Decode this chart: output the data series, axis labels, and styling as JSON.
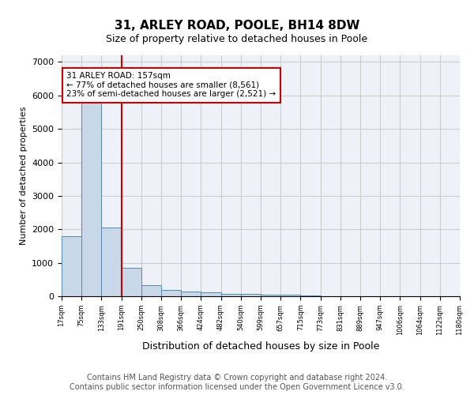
{
  "title_line1": "31, ARLEY ROAD, POOLE, BH14 8DW",
  "title_line2": "Size of property relative to detached houses in Poole",
  "xlabel": "Distribution of detached houses by size in Poole",
  "ylabel": "Number of detached properties",
  "bin_labels": [
    "17sqm",
    "75sqm",
    "133sqm",
    "191sqm",
    "250sqm",
    "308sqm",
    "366sqm",
    "424sqm",
    "482sqm",
    "540sqm",
    "599sqm",
    "657sqm",
    "715sqm",
    "773sqm",
    "831sqm",
    "889sqm",
    "947sqm",
    "1006sqm",
    "1064sqm",
    "1122sqm",
    "1180sqm"
  ],
  "bar_values": [
    1800,
    5800,
    2050,
    850,
    340,
    200,
    130,
    110,
    75,
    65,
    50,
    40,
    35,
    0,
    0,
    0,
    0,
    0,
    0,
    0
  ],
  "bar_color": "#c8d8e8",
  "bar_edge_color": "#5588aa",
  "grid_color": "#cccccc",
  "bg_color": "#eef2f8",
  "red_line_x": 3,
  "annotation_text": "31 ARLEY ROAD: 157sqm\n← 77% of detached houses are smaller (8,561)\n23% of semi-detached houses are larger (2,521) →",
  "annotation_box_color": "#ffffff",
  "annotation_box_edge": "#cc0000",
  "ylim": [
    0,
    7200
  ],
  "yticks": [
    0,
    1000,
    2000,
    3000,
    4000,
    5000,
    6000,
    7000
  ],
  "footer_text": "Contains HM Land Registry data © Crown copyright and database right 2024.\nContains public sector information licensed under the Open Government Licence v3.0.",
  "title_fontsize": 11,
  "subtitle_fontsize": 9,
  "footer_fontsize": 7
}
